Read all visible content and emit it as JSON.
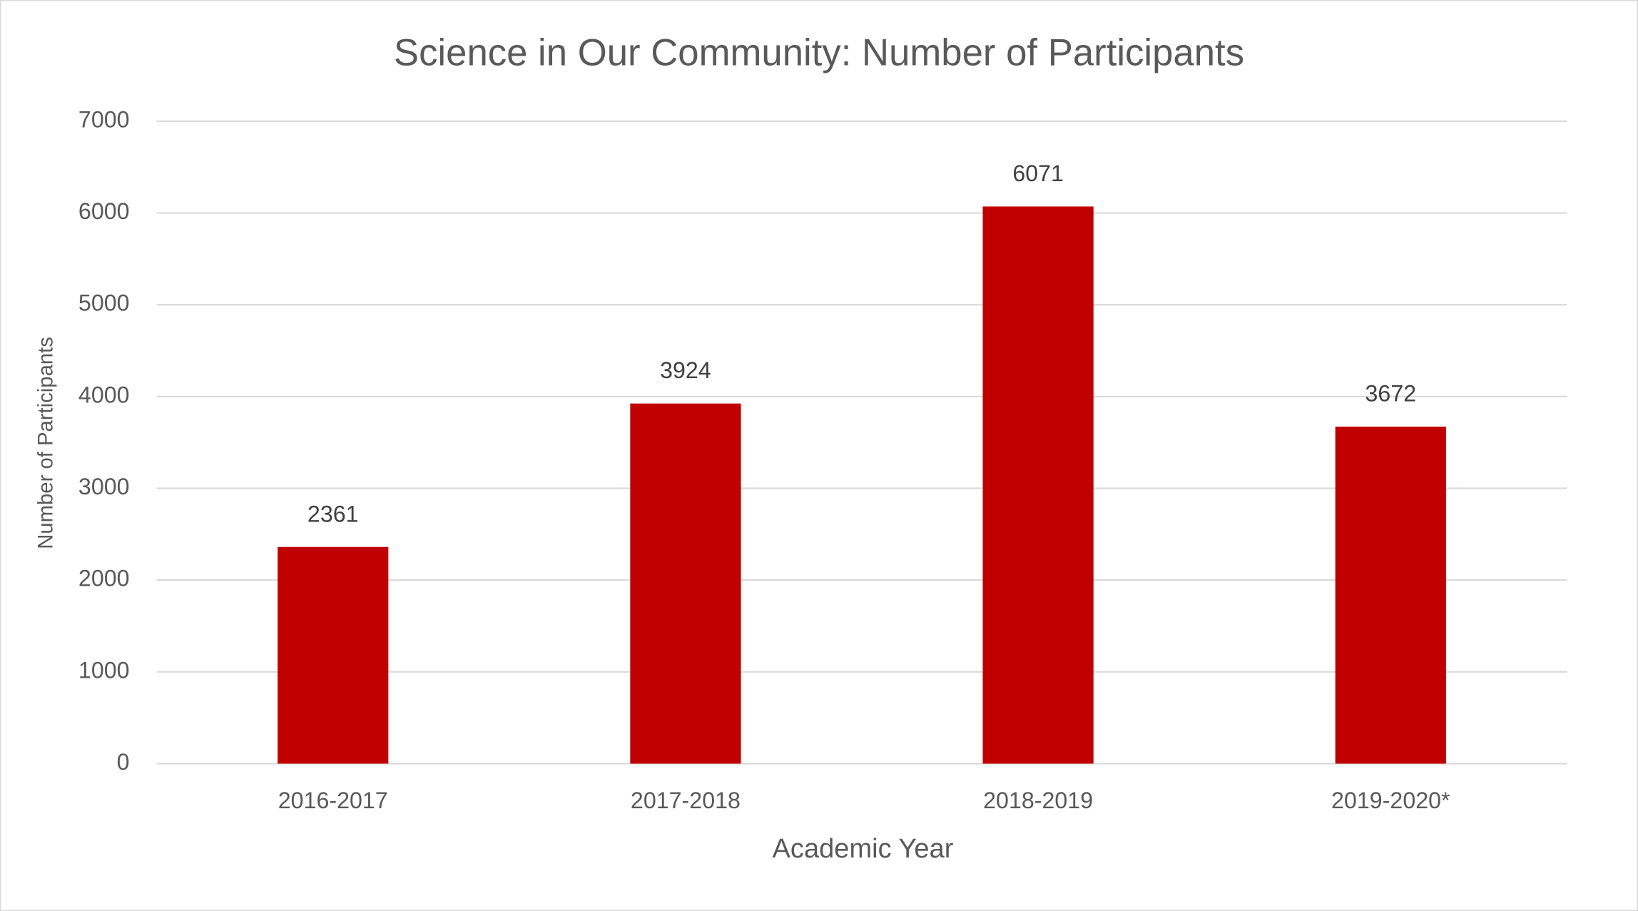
{
  "chart_data": {
    "type": "bar",
    "title": "Science in Our Community: Number of Participants",
    "x_label": "Academic Year",
    "y_label": "Number of Participants",
    "categories": [
      "2016-2017",
      "2017-2018",
      "2018-2019",
      "2019-2020*"
    ],
    "values": [
      2361,
      3924,
      6071,
      3672
    ],
    "color": "#c00000",
    "ylim": [
      0,
      7000
    ],
    "yticks": [
      0,
      1000,
      2000,
      3000,
      4000,
      5000,
      6000,
      7000
    ],
    "grid": true
  }
}
